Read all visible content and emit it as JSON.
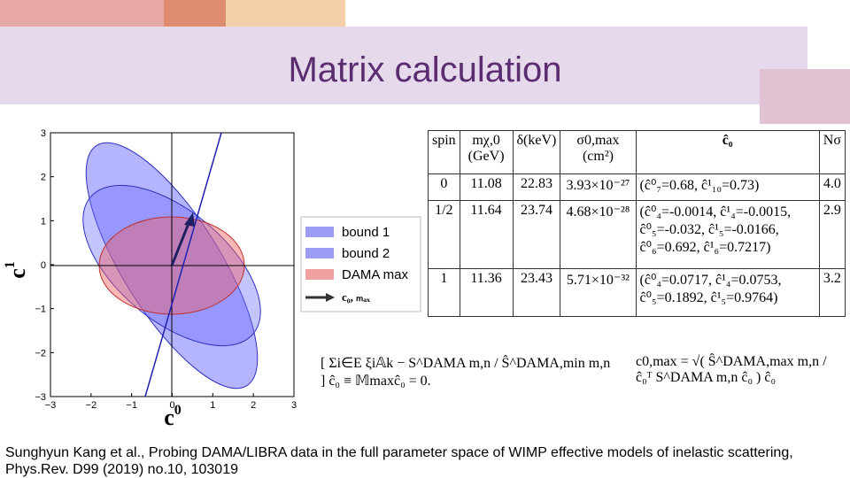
{
  "title": "Matrix calculation",
  "figure": {
    "xlabel": {
      "base": "c",
      "sup": "0"
    },
    "ylabel": {
      "base": "c",
      "sup": "1"
    },
    "xlim": [
      -3,
      3
    ],
    "ylim": [
      -3,
      3
    ],
    "xticks": [
      {
        "value": -3,
        "label": "−3"
      },
      {
        "value": -2,
        "label": "−2"
      },
      {
        "value": -1,
        "label": "−1"
      },
      0,
      1,
      2,
      3
    ],
    "yticks": [
      {
        "value": -3,
        "label": "−3"
      },
      {
        "value": -2,
        "label": "−2"
      },
      {
        "value": -1,
        "label": "−1"
      },
      0,
      1,
      2,
      3
    ],
    "legend": [
      "bound 1",
      "bound 2",
      "DAMA max",
      "c₀, ₘₐₓ"
    ]
  },
  "table": {
    "header": [
      "spin",
      "mχ,0 (GeV)",
      "δ(keV)",
      "σ0,max (cm²)",
      "ĉ₀",
      "Nσ"
    ],
    "rows": [
      [
        "0",
        "11.08",
        "22.83",
        "3.93×10⁻²⁷",
        "(ĉ⁰₇=0.68, ĉ¹₁₀=0.73)",
        "4.0"
      ],
      [
        "1/2",
        "11.64",
        "23.74",
        "4.68×10⁻²⁸",
        "(ĉ⁰₄=-0.0014, ĉ¹₄=-0.0015, ĉ⁰₅=-0.032, ĉ¹₅=-0.0166, ĉ⁰₆=0.692, ĉ¹₆=0.7217)",
        "2.9"
      ],
      [
        "1",
        "11.36",
        "23.43",
        "5.71×10⁻³²",
        "(ĉ⁰₄=0.0717, ĉ¹₄=0.0753, ĉ⁰₅=0.1892, ĉ¹₅=0.9764)",
        "3.2"
      ]
    ]
  },
  "equations": [
    "[ Σi∈E ξi𝔸k − S^DAMA m,n / Ŝ^DAMA,min m,n ] ĉ₀ ≡ 𝕄maxĉ₀ = 0.",
    "c0,max = √( Ŝ^DAMA,max m,n / ĉ₀ᵀ S^DAMA m,n ĉ₀ ) ĉ₀"
  ],
  "citation": "Sunghyun Kang et al., Probing DAMA/LIBRA data in the full parameter space of WIMP effective models of inelastic scattering, Phys.Rev. D99 (2019) no.10, 103019"
}
